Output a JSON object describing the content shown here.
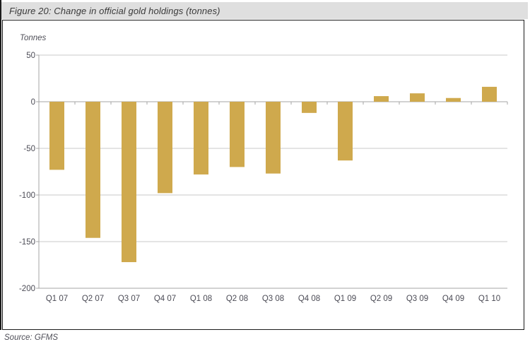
{
  "chart_data": {
    "type": "bar",
    "title": "Figure 20: Change in official gold holdings (tonnes)",
    "ylabel": "Tonnes",
    "xlabel": "",
    "categories": [
      "Q1 07",
      "Q2 07",
      "Q3 07",
      "Q4 07",
      "Q1 08",
      "Q2 08",
      "Q3 08",
      "Q4 08",
      "Q1 09",
      "Q2 09",
      "Q3 09",
      "Q4 09",
      "Q1 10"
    ],
    "values": [
      -73,
      -146,
      -172,
      -98,
      -78,
      -70,
      -77,
      -12,
      -63,
      6,
      9,
      4,
      16
    ],
    "ylim": [
      -200,
      50
    ],
    "yticks": [
      50,
      0,
      -50,
      -100,
      -150,
      -200
    ],
    "grid": true,
    "legend_position": "none",
    "bar_color": "#CFA94D",
    "gridline_color": "#C9C9C9",
    "axis_color": "#A6A6A6",
    "source": "Source: GFMS"
  }
}
